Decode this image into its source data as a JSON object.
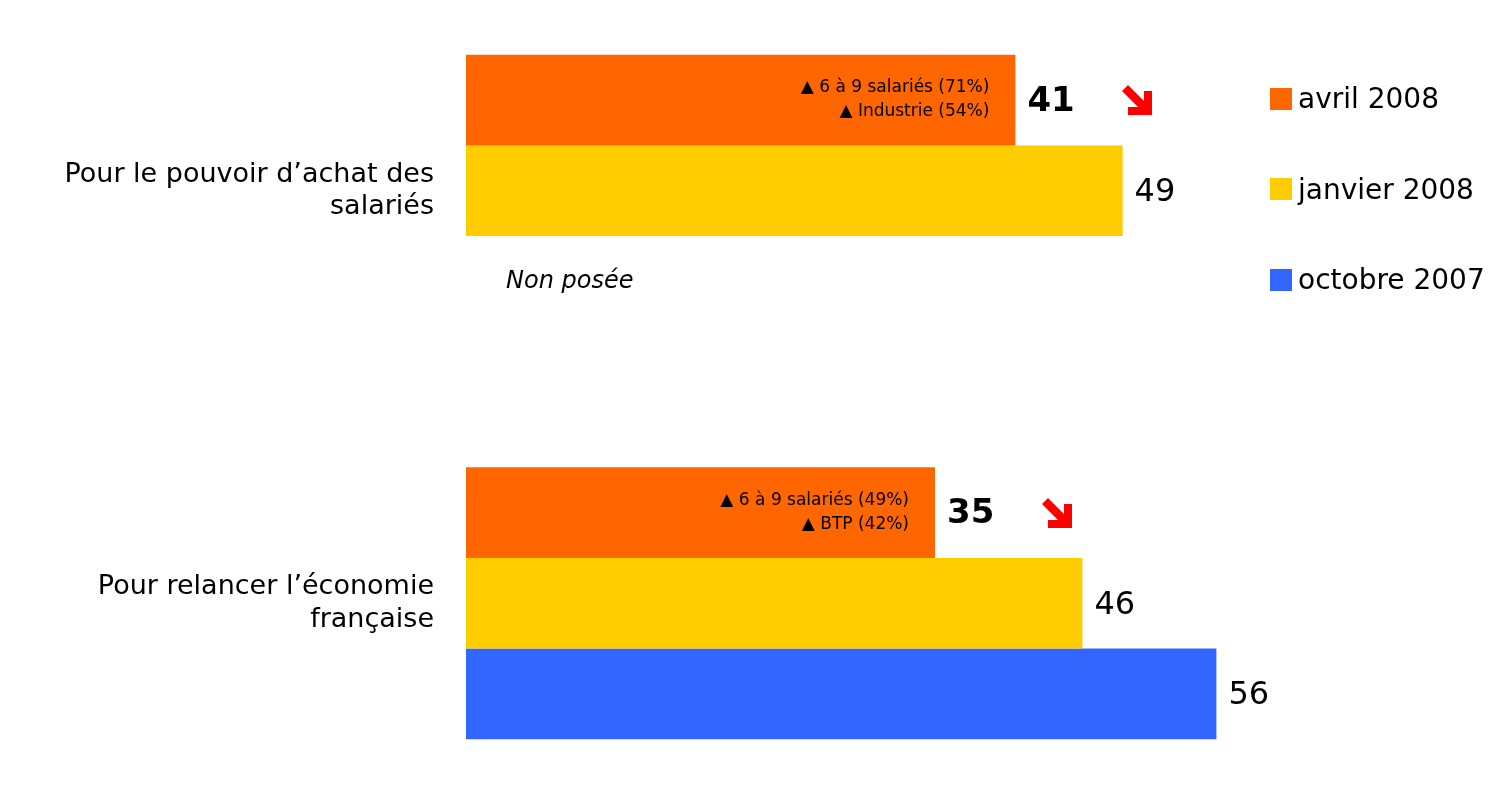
{
  "chart_data": {
    "type": "bar",
    "orientation": "horizontal",
    "categories": [
      "Pour le pouvoir d’achat des salariés",
      "Pour relancer l’économie française"
    ],
    "series": [
      {
        "name": "avril 2008",
        "color": "#ff6600",
        "values": [
          41,
          35
        ]
      },
      {
        "name": "janvier 2008",
        "color": "#ffcc00",
        "values": [
          49,
          46
        ]
      },
      {
        "name": "octobre 2007",
        "color": "#3366ff",
        "values": [
          null,
          56
        ]
      }
    ],
    "data_labels": true,
    "legend": "right",
    "annotations": [
      "▲ 6 à 9 salariés (71%)\n▲ Industrie (54%)",
      "▲ 6 à 9 salariés (49%)\n▲ BTP (42%)",
      "Non posée"
    ]
  }
}
